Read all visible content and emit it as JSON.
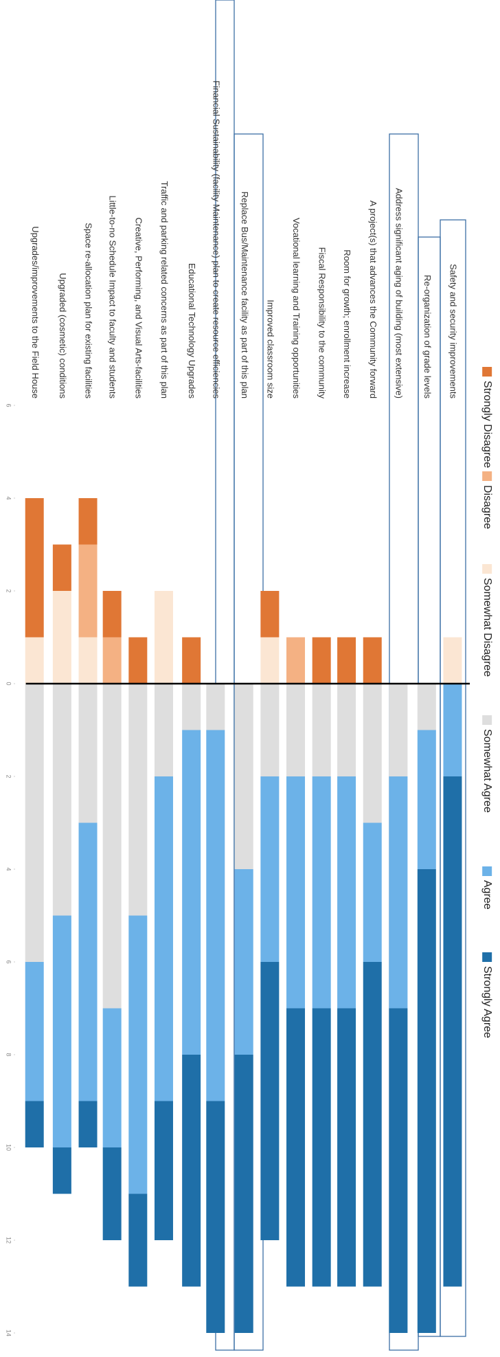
{
  "chart_data": {
    "type": "diverging-bar",
    "categories": [
      "Safety and security improvements",
      "Re-organization of grade levels",
      "Address significant aging of building (most extensive)",
      "A project(s) that advances the Community forward",
      "Room for growth; enrollment increase",
      "Fiscal Responsibility to the community",
      "Vocational learning and Training opportunities",
      "Improved classroom size",
      "Replace Bus/Maintenance facility as part of this plan",
      "Financial Sustainability (facility Maintenance) plan to create resource efficiencies",
      "Educational Technology Upgrades",
      "Traffic and parking related concerns as part of this plan",
      "Creative, Performing, and Visual   Arts-facilities",
      "Little-to-no Schedule Impact to faculty and students",
      "Space re-allocation plan for existing facilities",
      "Upgraded (cosmetic) conditions",
      "Upgrades/improvements to the Field House"
    ],
    "series": [
      {
        "name": "Strongly Disagree",
        "color": "#e07735",
        "values": [
          0,
          0,
          0,
          -1,
          -1,
          -1,
          0,
          -1,
          0,
          0,
          -1,
          0,
          -1,
          -1,
          -1,
          -1,
          -3
        ]
      },
      {
        "name": "Disagree",
        "color": "#f4b183",
        "values": [
          0,
          0,
          0,
          0,
          0,
          0,
          -1,
          0,
          0,
          0,
          0,
          0,
          0,
          -1,
          -2,
          0,
          0
        ]
      },
      {
        "name": "Somewhat Disagree",
        "color": "#fbe6d3",
        "values": [
          -1,
          0,
          0,
          0,
          0,
          0,
          0,
          -1,
          0,
          0,
          0,
          -2,
          0,
          0,
          -1,
          -2,
          -1
        ]
      },
      {
        "name": "Somewhat Agree",
        "color": "#dedede",
        "values": [
          0,
          1,
          2,
          3,
          2,
          2,
          2,
          2,
          4,
          1,
          1,
          2,
          5,
          7,
          3,
          5,
          6
        ]
      },
      {
        "name": "Agree",
        "color": "#6cb2e8",
        "values": [
          2,
          3,
          5,
          3,
          5,
          5,
          5,
          4,
          4,
          8,
          7,
          7,
          6,
          3,
          6,
          5,
          3
        ]
      },
      {
        "name": "Strongly Agree",
        "color": "#1f6fa8",
        "values": [
          11,
          10,
          7,
          7,
          6,
          6,
          6,
          6,
          6,
          5,
          5,
          3,
          2,
          2,
          1,
          1,
          1
        ]
      }
    ],
    "ylim": [
      -6,
      14
    ],
    "yticks": [
      {
        "value": -6,
        "label": "6"
      },
      {
        "value": -4,
        "label": "4"
      },
      {
        "value": -2,
        "label": "2"
      },
      0,
      2,
      4,
      6,
      8,
      10,
      12,
      14
    ]
  }
}
